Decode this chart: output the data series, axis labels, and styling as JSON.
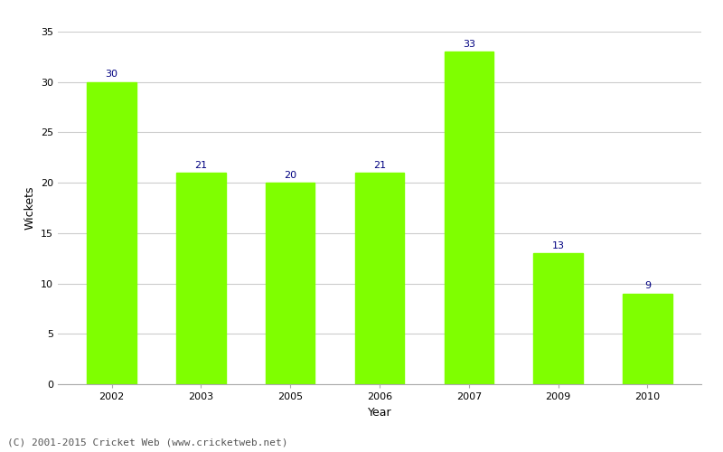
{
  "years": [
    "2002",
    "2003",
    "2005",
    "2006",
    "2007",
    "2009",
    "2010"
  ],
  "values": [
    30,
    21,
    20,
    21,
    33,
    13,
    9
  ],
  "bar_color": "#7fff00",
  "label_color": "#000080",
  "ylabel": "Wickets",
  "xlabel": "Year",
  "ylim": [
    0,
    35
  ],
  "yticks": [
    0,
    5,
    10,
    15,
    20,
    25,
    30,
    35
  ],
  "title": "",
  "footnote": "(C) 2001-2015 Cricket Web (www.cricketweb.net)",
  "footnote_color": "#555555",
  "grid_color": "#cccccc",
  "bg_color": "#ffffff",
  "bar_width": 0.55,
  "label_fontsize": 8,
  "axis_label_fontsize": 9,
  "tick_fontsize": 8,
  "footnote_fontsize": 8
}
